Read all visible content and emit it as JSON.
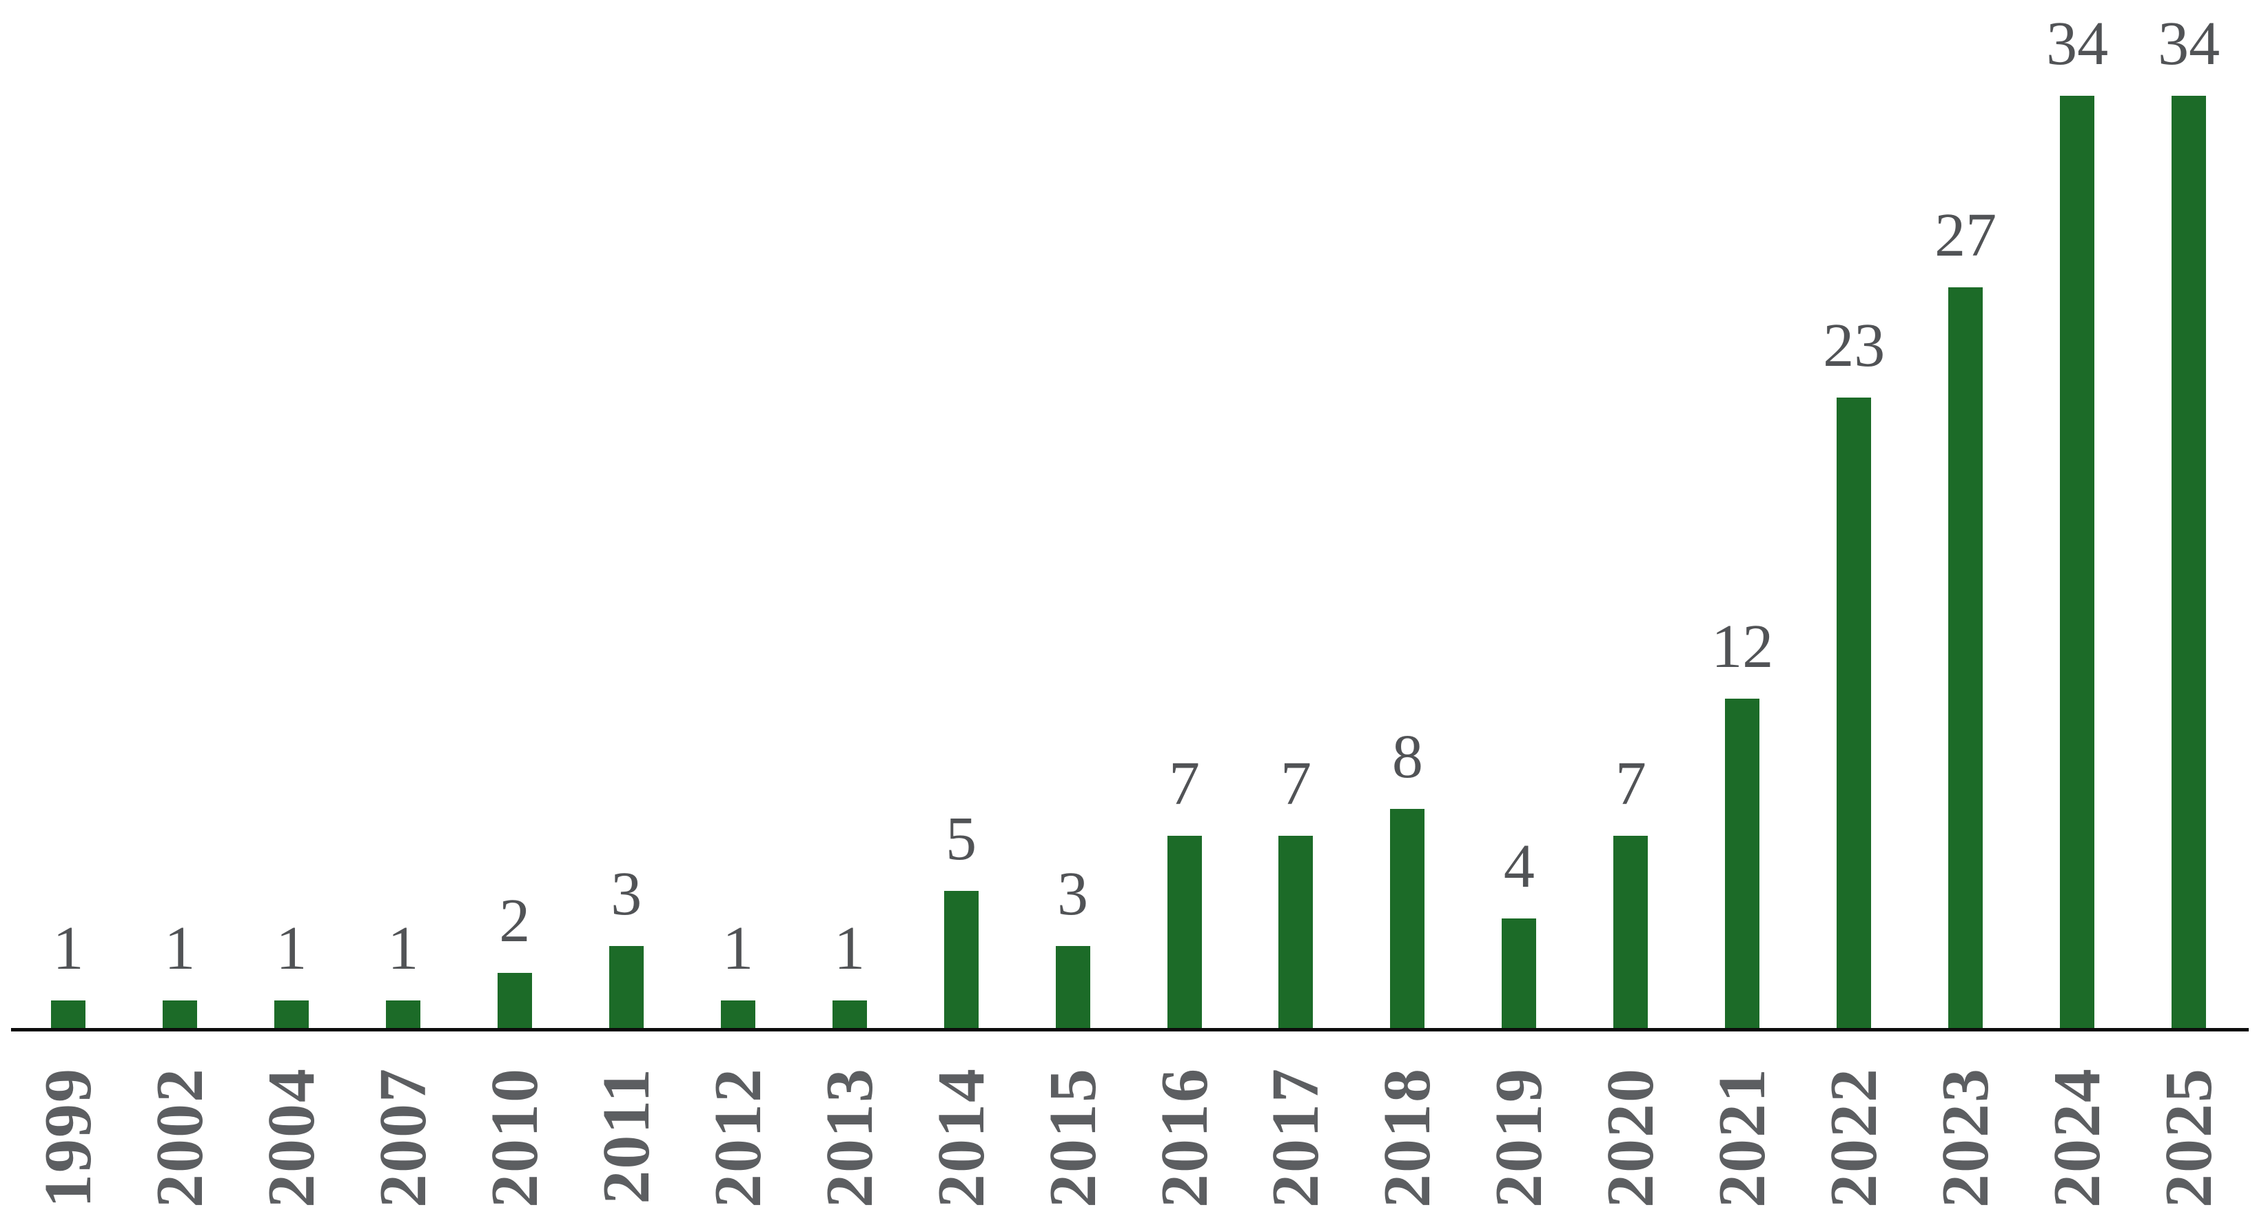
{
  "chart_data": {
    "type": "bar",
    "title": "",
    "xlabel": "",
    "ylabel": "",
    "categories": [
      "1999",
      "2002",
      "2004",
      "2007",
      "2010",
      "2011",
      "2012",
      "2013",
      "2014",
      "2015",
      "2016",
      "2017",
      "2018",
      "2019",
      "2020",
      "2021",
      "2022",
      "2023",
      "2024",
      "2025"
    ],
    "values": [
      1,
      1,
      1,
      1,
      2,
      3,
      1,
      1,
      5,
      3,
      7,
      7,
      8,
      4,
      7,
      12,
      23,
      27,
      34,
      34
    ],
    "ylim": [
      0,
      34
    ],
    "grid": false,
    "legend_position": "none",
    "value_labels_shown": true,
    "x_tick_rotation_degrees": 90,
    "colors": {
      "bar": "#1C6B28",
      "value_label": "#515356",
      "tick_label": "#5C5E61",
      "axis_line": "#0A0A0A",
      "background": "#FFFFFF"
    }
  }
}
